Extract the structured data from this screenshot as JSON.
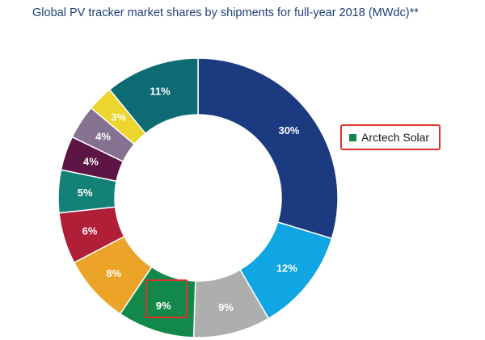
{
  "chart_data": {
    "type": "pie",
    "title": "Global PV tracker market shares by shipments for full-year 2018 (MWdc)**",
    "slices": [
      {
        "value": 30,
        "label": "30%",
        "color": "#1c3a80"
      },
      {
        "value": 12,
        "label": "12%",
        "color": "#10a5e3"
      },
      {
        "value": 9,
        "label": "9%",
        "color": "#aeaeae"
      },
      {
        "value": 9,
        "label": "9%",
        "color": "#12894a"
      },
      {
        "value": 8,
        "label": "8%",
        "color": "#eba328"
      },
      {
        "value": 6,
        "label": "6%",
        "color": "#b01e38"
      },
      {
        "value": 5,
        "label": "5%",
        "color": "#138276"
      },
      {
        "value": 4,
        "label": "4%",
        "color": "#5c1544"
      },
      {
        "value": 4,
        "label": "4%",
        "color": "#857190"
      },
      {
        "value": 3,
        "label": "3%",
        "color": "#ecd52c"
      },
      {
        "value": 11,
        "label": "11%",
        "color": "#0d6b73"
      }
    ],
    "legend": [
      {
        "name": "Arctech Solar",
        "color": "#12894a"
      }
    ],
    "legend_position": "right",
    "highlighted_slice": 3
  }
}
